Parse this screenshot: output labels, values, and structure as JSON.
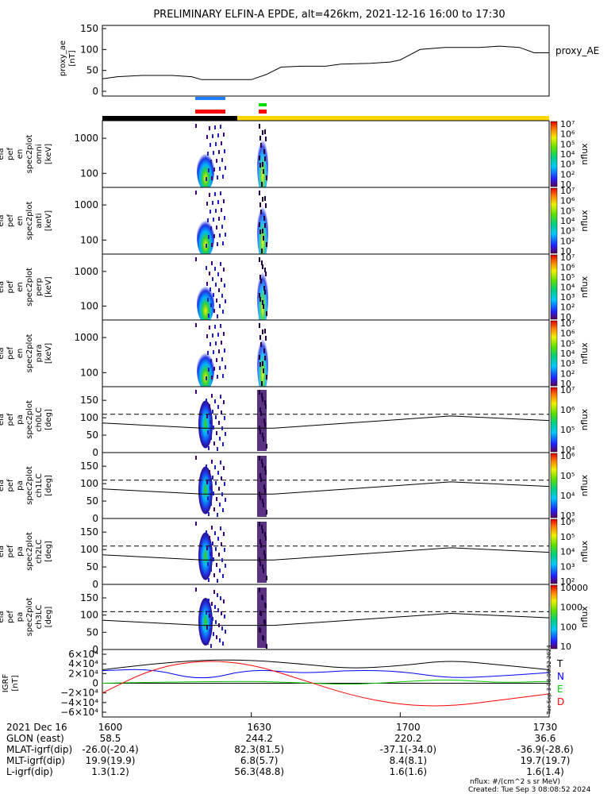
{
  "title": "PRELIMINARY ELFIN-A EPDE, alt=426km, 2021-12-16 16:00 to 17:30",
  "chart_data": [
    {
      "type": "line",
      "panel": "proxy_ae",
      "ylabel": [
        "proxy_ae",
        "[nT]"
      ],
      "legend": "proxy_AE",
      "ylim": [
        0,
        150
      ],
      "yticks": [
        "0",
        "50",
        "100",
        "150"
      ],
      "x": [
        0,
        3,
        8,
        14,
        18,
        20,
        24,
        30,
        33,
        36,
        40,
        45,
        48,
        54,
        58,
        60,
        64,
        69,
        71,
        76,
        80,
        84,
        87,
        90
      ],
      "y": [
        30,
        35,
        38,
        38,
        35,
        28,
        28,
        28,
        40,
        58,
        60,
        60,
        65,
        67,
        70,
        75,
        100,
        105,
        105,
        105,
        108,
        105,
        92,
        92
      ]
    },
    {
      "type": "heatmap",
      "panels": [
        {
          "ylabel": [
            "ela",
            "pef",
            "en",
            "spec2plot",
            "omni",
            "[keV]"
          ],
          "yticks": [
            "100",
            "1000"
          ]
        },
        {
          "ylabel": [
            "ela",
            "pef",
            "en",
            "spec2plot",
            "anti",
            "[keV]"
          ],
          "yticks": [
            "100",
            "1000"
          ]
        },
        {
          "ylabel": [
            "ela",
            "pef",
            "en",
            "spec2plot",
            "perp",
            "[keV]"
          ],
          "yticks": [
            "100",
            "1000"
          ]
        },
        {
          "ylabel": [
            "ela",
            "pef",
            "en",
            "spec2plot",
            "para",
            "[keV]"
          ],
          "yticks": [
            "100",
            "1000"
          ]
        }
      ],
      "colorbar_label": "nflux",
      "colorbar_range": [
        1,
        10000000
      ]
    },
    {
      "type": "heatmap",
      "panels": [
        {
          "ylabel": [
            "ela",
            "pef",
            "pa",
            "spec2plot",
            "ch0LC",
            "[deg]"
          ],
          "yticks": [
            "0",
            "50",
            "100",
            "150"
          ],
          "cbticks": [
            "10⁴",
            "10⁵",
            "10⁶",
            "10⁷"
          ]
        },
        {
          "ylabel": [
            "ela",
            "pef",
            "pa",
            "spec2plot",
            "ch1LC",
            "[deg]"
          ],
          "yticks": [
            "0",
            "50",
            "100",
            "150"
          ],
          "cbticks": [
            "10³",
            "10⁴",
            "10⁵",
            "10⁶"
          ]
        },
        {
          "ylabel": [
            "ela",
            "pef",
            "pa",
            "spec2plot",
            "ch2LC",
            "[deg]"
          ],
          "yticks": [
            "0",
            "50",
            "100",
            "150"
          ],
          "cbticks": [
            "10²",
            "10³",
            "10⁴",
            "10⁵",
            "10⁶"
          ]
        },
        {
          "ylabel": [
            "ela",
            "pef",
            "pa",
            "spec2plot",
            "ch3LC",
            "[deg]"
          ],
          "yticks": [
            "0",
            "50",
            "100",
            "150"
          ],
          "cbticks": [
            "10",
            "100",
            "1000",
            "10000"
          ]
        }
      ],
      "colorbar_label": "nflux",
      "ylim": [
        0,
        180
      ],
      "dashed_line_deg": 110
    },
    {
      "type": "line",
      "panel": "igrf",
      "ylabel": [
        "IGRF",
        "[nT]"
      ],
      "ylim": [
        -60000,
        60000
      ],
      "yticks": [
        "6×10⁴",
        "4×10⁴",
        "2×10⁴",
        "0",
        "−2×10⁴",
        "−4×10⁴",
        "−6×10⁴"
      ],
      "series": [
        {
          "name": "T",
          "color": "#000000",
          "x": [
            0,
            10,
            20,
            30,
            40,
            50,
            60,
            70,
            80,
            90
          ],
          "y": [
            28000,
            40000,
            48000,
            48000,
            40000,
            30000,
            36000,
            48000,
            38000,
            28000
          ]
        },
        {
          "name": "N",
          "color": "#0000ff",
          "x": [
            0,
            10,
            20,
            30,
            40,
            50,
            60,
            70,
            80,
            90
          ],
          "y": [
            26000,
            30000,
            5000,
            30000,
            20000,
            27000,
            25000,
            10000,
            15000,
            22000
          ]
        },
        {
          "name": "E",
          "color": "#00cc00",
          "x": [
            0,
            10,
            20,
            30,
            40,
            50,
            60,
            70,
            80,
            90
          ],
          "y": [
            0,
            2000,
            3000,
            4000,
            1000,
            -3000,
            3000,
            8000,
            1000,
            4000
          ]
        },
        {
          "name": "D",
          "color": "#ff0000",
          "x": [
            0,
            10,
            20,
            30,
            40,
            50,
            60,
            70,
            80,
            90
          ],
          "y": [
            -20000,
            30000,
            48000,
            40000,
            8000,
            -25000,
            -45000,
            -48000,
            -35000,
            -22000
          ]
        }
      ]
    }
  ],
  "x_axis": {
    "ticks": [
      "1600",
      "1630",
      "1700",
      "1730"
    ],
    "range_minutes": [
      0,
      90
    ]
  },
  "footer": {
    "rows": [
      {
        "label": "2021 Dec 16",
        "values": [
          "1600",
          "1630",
          "1700",
          "1730"
        ]
      },
      {
        "label": "GLON (east)",
        "values": [
          "58.5",
          "244.2",
          "220.2",
          "36.6"
        ]
      },
      {
        "label": "MLAT-igrf(dip)",
        "values": [
          "-26.0(-20.4)",
          "82.3(81.5)",
          "-37.1(-34.0)",
          "-36.9(-28.6)"
        ]
      },
      {
        "label": "MLT-igrf(dip)",
        "values": [
          "19.9(19.9)",
          "6.8(5.7)",
          "8.4(8.1)",
          "19.7(19.7)"
        ]
      },
      {
        "label": "L-igrf(dip)",
        "values": [
          "1.3(1.2)",
          "56.3(48.8)",
          "1.6(1.6)",
          "1.6(1.4)"
        ]
      }
    ],
    "units_note": "nflux: #/(cm^2 s sr MeV)",
    "created": "Created: Tue Sep  3 08:08:52 2024",
    "side_stamp": "Tue Sep  3 08:08:52 2024"
  }
}
